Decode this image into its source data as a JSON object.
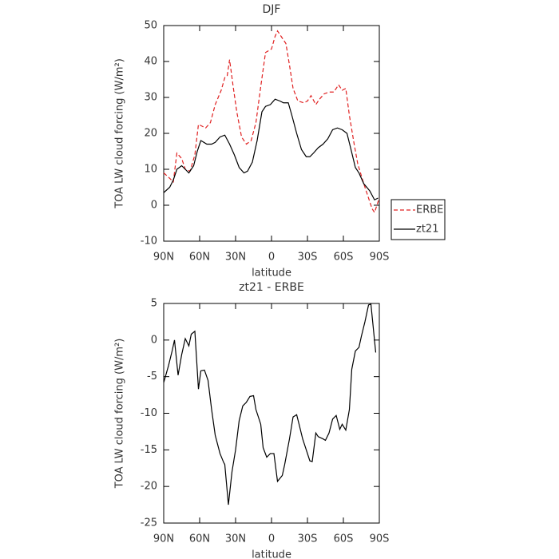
{
  "chart_data": [
    {
      "type": "line",
      "title": "DJF",
      "xlabel": "latitude",
      "ylabel": "TOA LW cloud forcing (W/m²)",
      "xlim": [
        90,
        -90
      ],
      "xticks": [
        {
          "value": 90,
          "label": "90N"
        },
        {
          "value": 60,
          "label": "60N"
        },
        {
          "value": 30,
          "label": "30N"
        },
        0,
        {
          "value": -30,
          "label": "30S"
        },
        {
          "value": -60,
          "label": "60S"
        },
        {
          "value": -90,
          "label": "90S"
        }
      ],
      "ylim": [
        -10,
        50
      ],
      "yticks": [
        -10,
        0,
        10,
        20,
        30,
        40,
        50
      ],
      "legend": "right",
      "series": [
        {
          "name": "ERBE",
          "color": "#e02020",
          "linestyle": "dashed",
          "x": [
            90,
            85,
            82,
            79,
            75,
            72,
            68,
            64,
            61,
            55,
            51,
            47,
            42,
            39,
            37,
            35,
            32,
            29,
            25,
            21,
            17,
            13,
            9,
            5,
            0,
            -3,
            -5,
            -8,
            -12,
            -15,
            -18,
            -22,
            -27,
            -30,
            -33,
            -37,
            -40,
            -44,
            -48,
            -52,
            -56,
            -59,
            -62,
            -65,
            -69,
            -72,
            -77,
            -81,
            -84,
            -86,
            -90
          ],
          "values": [
            9,
            7.5,
            6.5,
            14.5,
            13,
            10,
            9.5,
            14,
            22.5,
            21.5,
            23,
            28,
            32,
            35.5,
            36,
            40.5,
            33,
            26,
            19,
            17,
            18,
            23,
            33,
            42.5,
            43.5,
            47,
            48.5,
            47,
            45,
            39,
            32.5,
            29,
            28.5,
            29,
            30.5,
            28,
            29.5,
            31,
            31.5,
            31.5,
            33.5,
            32,
            32.5,
            25,
            17,
            11.5,
            6,
            2,
            -1,
            -2,
            2
          ]
        },
        {
          "name": "zt21",
          "color": "#000000",
          "linestyle": "solid",
          "x": [
            90,
            85,
            82,
            79,
            75,
            72,
            69,
            65,
            62,
            59,
            54,
            50,
            47,
            43,
            39,
            35,
            31,
            27,
            23,
            20,
            16,
            12,
            8,
            5,
            1,
            -3,
            -7,
            -10,
            -14,
            -17,
            -21,
            -25,
            -29,
            -32,
            -35,
            -39,
            -43,
            -47,
            -51,
            -55,
            -59,
            -63,
            -66,
            -70,
            -73,
            -77,
            -82,
            -86,
            -89
          ],
          "values": [
            3.5,
            5,
            7,
            10,
            11,
            10,
            9,
            11,
            15,
            18,
            17,
            17,
            17.5,
            19,
            19.5,
            17,
            14,
            10.5,
            9,
            9.5,
            12,
            18,
            26,
            27.5,
            28,
            29.5,
            29,
            28.5,
            28.5,
            25,
            20,
            15.5,
            13.5,
            13.5,
            14.5,
            16,
            17,
            18.5,
            21,
            21.5,
            21,
            20,
            16,
            10.5,
            9,
            6,
            4,
            1.5,
            2
          ]
        }
      ]
    },
    {
      "type": "line",
      "title": "zt21 - ERBE",
      "xlabel": "latitude",
      "ylabel": "TOA LW cloud forcing (W/m²)",
      "xlim": [
        90,
        -90
      ],
      "xticks": [
        {
          "value": 90,
          "label": "90N"
        },
        {
          "value": 60,
          "label": "60N"
        },
        {
          "value": 30,
          "label": "30N"
        },
        0,
        {
          "value": -30,
          "label": "30S"
        },
        {
          "value": -60,
          "label": "60S"
        },
        {
          "value": -90,
          "label": "90S"
        }
      ],
      "ylim": [
        -25,
        5
      ],
      "yticks": [
        -25,
        -20,
        -15,
        -10,
        -5,
        0,
        5
      ],
      "series": [
        {
          "color": "#000000",
          "linestyle": "solid",
          "x": [
            90,
            86,
            83,
            81,
            78,
            75,
            72,
            69,
            67,
            64,
            61,
            59,
            56,
            53,
            50,
            47,
            43,
            40,
            39,
            36,
            33,
            30,
            27,
            24,
            21,
            18,
            15,
            13,
            9,
            7,
            4,
            1,
            -2,
            -5,
            -9,
            -11,
            -15,
            -18,
            -21,
            -23,
            -26,
            -29,
            -32,
            -34,
            -37,
            -39,
            -43,
            -45,
            -48,
            -51,
            -54,
            -57,
            -59,
            -62,
            -65,
            -67,
            -70,
            -73,
            -75,
            -78,
            -81,
            -83,
            -87
          ],
          "values": [
            -5.8,
            -3.5,
            -1.5,
            0,
            -4.8,
            -2,
            0.2,
            -0.8,
            0.8,
            1.2,
            -6.7,
            -4.2,
            -4.1,
            -5.5,
            -9.5,
            -13,
            -15.5,
            -16.7,
            -17,
            -22.5,
            -18,
            -15,
            -11,
            -9,
            -8.5,
            -7.7,
            -7.6,
            -9.5,
            -11.5,
            -14.7,
            -16,
            -15.5,
            -15.5,
            -19.3,
            -18.5,
            -17,
            -13.5,
            -10.5,
            -10.2,
            -11.5,
            -13.5,
            -15,
            -16.5,
            -16.6,
            -12.7,
            -13.2,
            -13.5,
            -13.7,
            -12.7,
            -10.8,
            -10.3,
            -12.2,
            -11.5,
            -12.3,
            -9.5,
            -4,
            -1.5,
            -1,
            0.5,
            2.5,
            4.8,
            4.9,
            -1.7
          ]
        }
      ]
    }
  ]
}
